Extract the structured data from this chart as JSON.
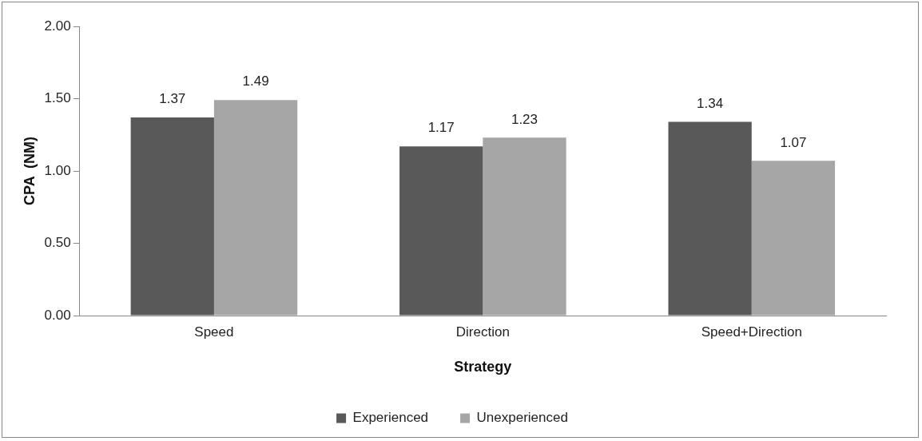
{
  "chart_data": {
    "type": "bar",
    "xlabel": "Strategy",
    "ylabel": "CPA  (NM)",
    "categories": [
      "Speed",
      "Direction",
      "Speed+Direction"
    ],
    "series": [
      {
        "name": "Experienced",
        "color": "#595959",
        "values": [
          1.37,
          1.17,
          1.34
        ]
      },
      {
        "name": "Unexperienced",
        "color": "#a6a6a6",
        "values": [
          1.49,
          1.23,
          1.07
        ]
      }
    ],
    "ylim": [
      0,
      2
    ],
    "yticks": [
      {
        "value": 0,
        "label": "0.00"
      },
      {
        "value": 0.5,
        "label": "0.50"
      },
      {
        "value": 1,
        "label": "1.00"
      },
      {
        "value": 1.5,
        "label": "1.50"
      },
      {
        "value": 2,
        "label": "2.00"
      }
    ],
    "grid": false,
    "legend": "bottom",
    "data_labels": true
  }
}
